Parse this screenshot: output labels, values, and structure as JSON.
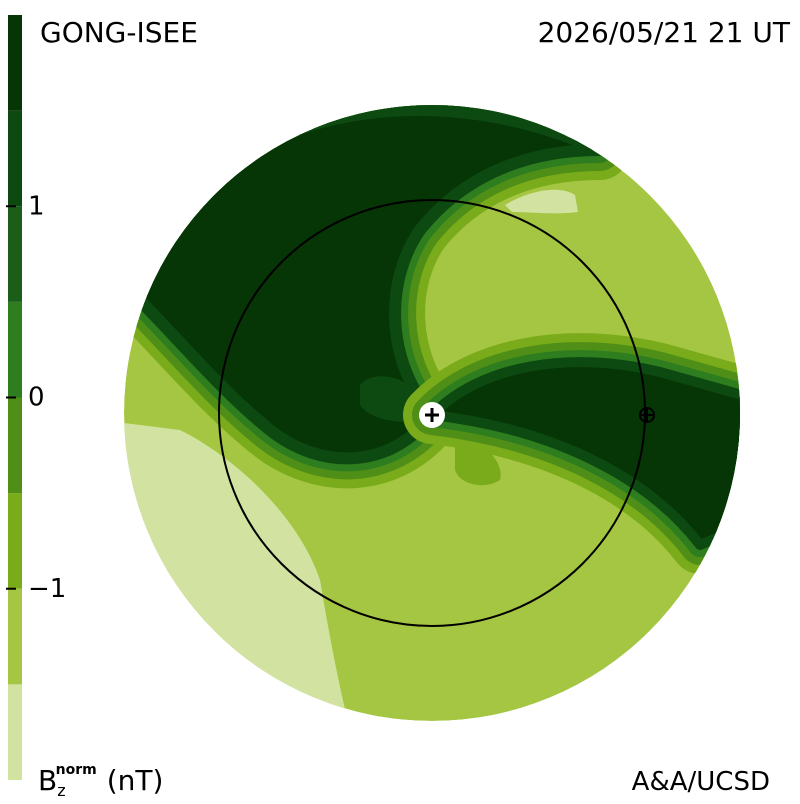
{
  "title": "GONG-ISEE",
  "timestamp": "2026/05/21 21 UT",
  "credit": "A&A/UCSD",
  "colorbar": {
    "label": {
      "symbol": "B",
      "subscript": "z",
      "superscript": "norm",
      "unit": "(nT)"
    },
    "lim": [
      -2,
      2
    ],
    "ticks": [
      1,
      0,
      {
        "value": -1,
        "label": "−1"
      }
    ],
    "colors": [
      "#d2e2a0",
      "#a5c642",
      "#7aab1a",
      "#4f8f17",
      "#2e7d1e",
      "#1a5e1a",
      "#0d4a12",
      "#063506"
    ]
  }
}
